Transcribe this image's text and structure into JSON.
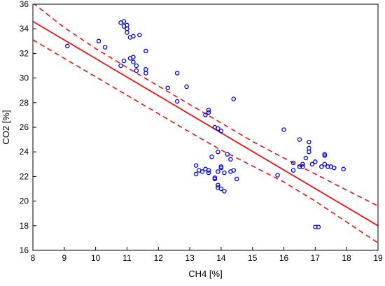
{
  "chart_data": {
    "type": "scatter",
    "title": "",
    "xlabel": "CH4 [%]",
    "ylabel": "CO2 [%]",
    "xlim": [
      8,
      19
    ],
    "ylim": [
      16,
      36
    ],
    "xticks": [
      8,
      9,
      10,
      11,
      12,
      13,
      14,
      15,
      16,
      17,
      18,
      19
    ],
    "yticks": [
      16,
      18,
      20,
      22,
      24,
      26,
      28,
      30,
      32,
      34,
      36
    ],
    "grid": false,
    "legend": "none",
    "colors": {
      "points": "#0000dd",
      "fit": "#ee1111",
      "confidence": "#ee1111"
    },
    "series": [
      {
        "values": [
          [
            9.1,
            32.6
          ],
          [
            10.1,
            33.0
          ],
          [
            10.3,
            32.5
          ],
          [
            10.8,
            34.5
          ],
          [
            10.9,
            34.6
          ],
          [
            10.9,
            34.2
          ],
          [
            11.0,
            34.0
          ],
          [
            11.0,
            33.7
          ],
          [
            11.0,
            34.3
          ],
          [
            11.1,
            33.3
          ],
          [
            11.2,
            33.4
          ],
          [
            11.4,
            33.5
          ],
          [
            11.6,
            32.2
          ],
          [
            10.8,
            31.0
          ],
          [
            10.9,
            31.4
          ],
          [
            11.1,
            31.6
          ],
          [
            11.2,
            31.7
          ],
          [
            11.2,
            31.3
          ],
          [
            11.3,
            31.0
          ],
          [
            11.3,
            30.6
          ],
          [
            11.6,
            30.7
          ],
          [
            11.6,
            30.4
          ],
          [
            12.3,
            29.2
          ],
          [
            12.6,
            30.4
          ],
          [
            12.6,
            28.1
          ],
          [
            12.9,
            29.3
          ],
          [
            13.2,
            22.9
          ],
          [
            13.2,
            22.2
          ],
          [
            13.3,
            22.5
          ],
          [
            13.4,
            22.4
          ],
          [
            13.5,
            22.6
          ],
          [
            13.6,
            22.3
          ],
          [
            13.6,
            22.5
          ],
          [
            13.5,
            27.0
          ],
          [
            13.6,
            27.4
          ],
          [
            13.6,
            27.2
          ],
          [
            13.8,
            26.0
          ],
          [
            13.9,
            25.9
          ],
          [
            14.0,
            25.7
          ],
          [
            13.7,
            23.6
          ],
          [
            13.8,
            21.8
          ],
          [
            13.8,
            21.9
          ],
          [
            13.9,
            24.0
          ],
          [
            13.9,
            22.4
          ],
          [
            13.9,
            21.3
          ],
          [
            14.0,
            21.0
          ],
          [
            14.0,
            22.7
          ],
          [
            14.0,
            22.8
          ],
          [
            14.1,
            20.8
          ],
          [
            14.1,
            22.3
          ],
          [
            14.2,
            23.8
          ],
          [
            14.3,
            23.4
          ],
          [
            14.3,
            22.4
          ],
          [
            14.4,
            22.5
          ],
          [
            14.4,
            28.3
          ],
          [
            14.5,
            21.8
          ],
          [
            13.9,
            21.1
          ],
          [
            15.8,
            22.1
          ],
          [
            16.0,
            25.8
          ],
          [
            16.3,
            23.1
          ],
          [
            16.3,
            22.5
          ],
          [
            16.5,
            22.8
          ],
          [
            16.6,
            23.0
          ],
          [
            16.5,
            25.0
          ],
          [
            16.7,
            23.5
          ],
          [
            16.8,
            24.0
          ],
          [
            16.8,
            24.3
          ],
          [
            16.8,
            24.8
          ],
          [
            16.9,
            23.0
          ],
          [
            16.6,
            22.8
          ],
          [
            17.0,
            23.2
          ],
          [
            17.0,
            17.9
          ],
          [
            17.1,
            17.9
          ],
          [
            17.2,
            22.8
          ],
          [
            17.3,
            23.8
          ],
          [
            17.3,
            23.7
          ],
          [
            17.3,
            23.0
          ],
          [
            17.4,
            22.8
          ],
          [
            17.5,
            22.8
          ],
          [
            17.6,
            22.7
          ],
          [
            17.9,
            22.6
          ]
        ]
      }
    ],
    "fit_line": [
      [
        8,
        34.6
      ],
      [
        19,
        18.0
      ]
    ],
    "confidence_band": {
      "upper": [
        [
          8,
          36.1
        ],
        [
          9,
          34.1
        ],
        [
          10,
          32.4
        ],
        [
          11,
          30.85
        ],
        [
          12,
          29.35
        ],
        [
          13,
          27.85
        ],
        [
          14,
          26.35
        ],
        [
          15,
          24.85
        ],
        [
          16,
          23.5
        ],
        [
          17,
          22.2
        ],
        [
          18,
          20.9
        ],
        [
          19,
          19.6
        ]
      ],
      "lower": [
        [
          8,
          33.1
        ],
        [
          9,
          31.6
        ],
        [
          10,
          30.1
        ],
        [
          11,
          28.6
        ],
        [
          12,
          27.1
        ],
        [
          13,
          25.6
        ],
        [
          14,
          24.15
        ],
        [
          15,
          22.85
        ],
        [
          16,
          21.55
        ],
        [
          17,
          20.0
        ],
        [
          18,
          18.3
        ],
        [
          19,
          16.6
        ]
      ]
    }
  }
}
